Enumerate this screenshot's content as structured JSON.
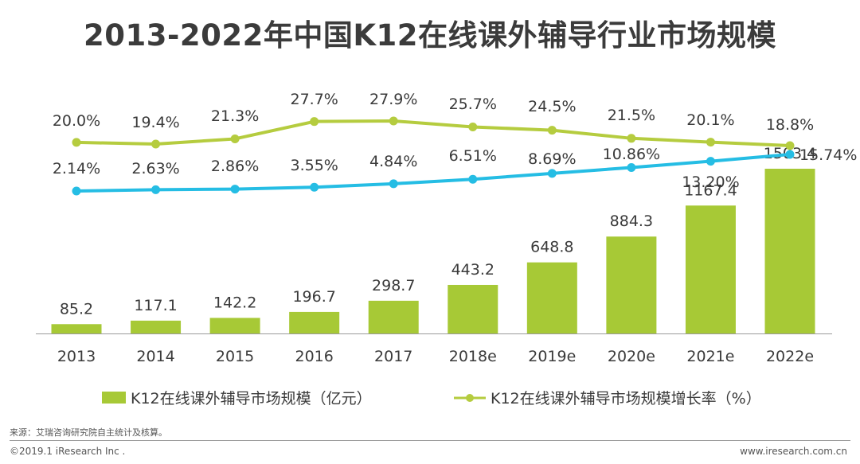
{
  "chart_data": {
    "type": "bar+line",
    "title": "2013-2022年中国K12在线课外辅导行业市场规模",
    "categories": [
      "2013",
      "2014",
      "2015",
      "2016",
      "2017",
      "2018e",
      "2019e",
      "2020e",
      "2021e",
      "2022e"
    ],
    "bar_series": {
      "name": "K12在线课外辅导市场规模（亿元）",
      "values": [
        85.2,
        117.1,
        142.2,
        196.7,
        298.7,
        443.2,
        648.8,
        884.3,
        1167.4,
        1503.4
      ],
      "labels": [
        "85.2",
        "117.1",
        "142.2",
        "196.7",
        "298.7",
        "443.2",
        "648.8",
        "884.3",
        "1167.4",
        "1503.4"
      ],
      "color": "#a7c936"
    },
    "line_series": [
      {
        "name": "K12在线课外辅导市场规模增长率（%）",
        "values": [
          20.0,
          19.4,
          21.3,
          27.7,
          27.9,
          25.7,
          24.5,
          21.5,
          20.1,
          18.8
        ],
        "labels": [
          "20.0%",
          "19.4%",
          "21.3%",
          "27.7%",
          "27.9%",
          "25.7%",
          "24.5%",
          "21.5%",
          "20.1%",
          "18.8%"
        ],
        "color": "#b5cc3f"
      },
      {
        "name": "",
        "values": [
          2.14,
          2.63,
          2.86,
          3.55,
          4.84,
          6.51,
          8.69,
          10.86,
          13.2,
          15.74
        ],
        "labels": [
          "2.14%",
          "2.63%",
          "2.86%",
          "3.55%",
          "4.84%",
          "6.51%",
          "8.69%",
          "10.86%",
          "13.20%",
          "15.74%"
        ],
        "color": "#25bde4"
      }
    ]
  },
  "footer": {
    "source": "来源：艾瑞咨询研究院自主统计及核算。",
    "copyright": "©2019.1 iResearch Inc .",
    "website": "www.iresearch.com.cn"
  }
}
